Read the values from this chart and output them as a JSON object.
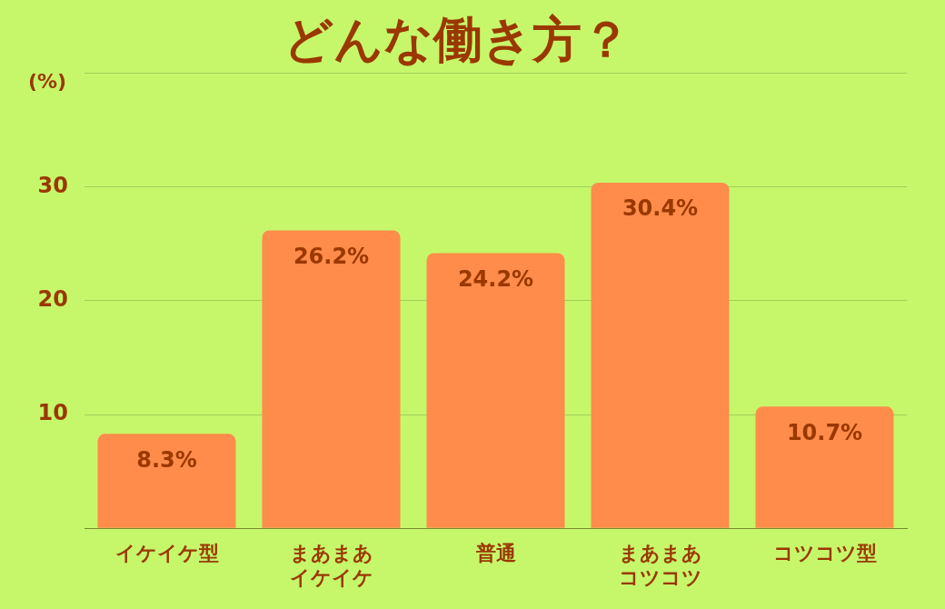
{
  "chart_data": {
    "type": "bar",
    "title": "どんな働き方？",
    "ylabel": "(%)",
    "categories": [
      "イケイケ型",
      "まあまあイケイケ",
      "普通",
      "まあまあコツコツ",
      "コツコツ型"
    ],
    "values": [
      8.3,
      26.2,
      24.2,
      30.4,
      10.7
    ],
    "value_labels": [
      "8.3%",
      "26.2%",
      "24.2%",
      "30.4%",
      "10.7%"
    ],
    "color": "#ff8c4a",
    "ylim": [
      0,
      40
    ],
    "yticks": [
      {
        "value": 0,
        "label": null
      },
      10,
      20,
      30,
      {
        "value": 40,
        "label": null
      }
    ],
    "grid": "y",
    "legend": false
  }
}
